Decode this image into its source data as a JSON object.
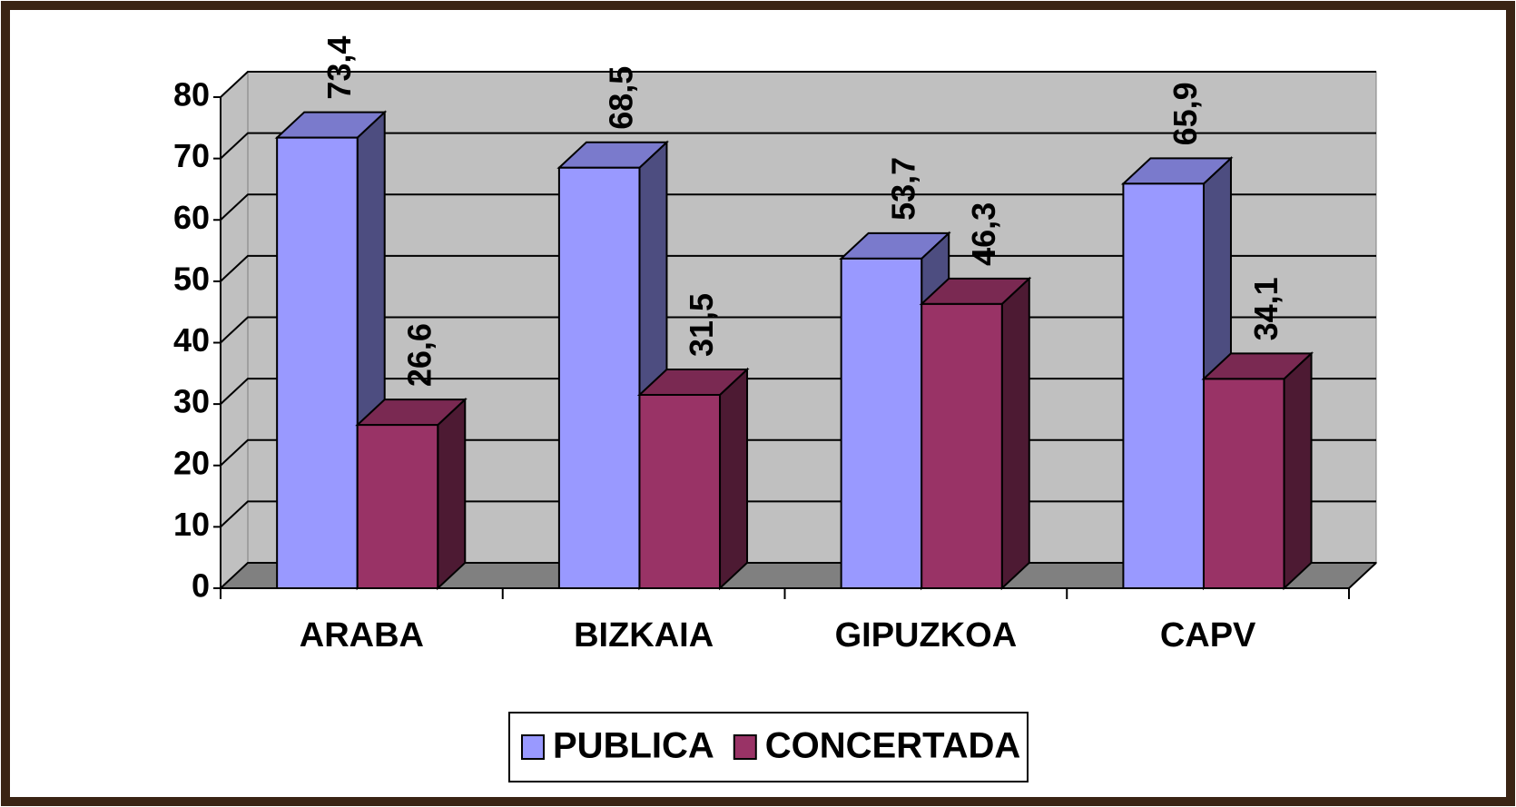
{
  "chart_data": {
    "type": "bar3d",
    "categories": [
      "ARABA",
      "BIZKAIA",
      "GIPUZKOA",
      "CAPV"
    ],
    "series": [
      {
        "name": "PUBLICA",
        "color": "#9999ff",
        "values": [
          73.4,
          68.5,
          53.7,
          65.9
        ],
        "value_labels": [
          "73,4",
          "68,5",
          "53,7",
          "65,9"
        ]
      },
      {
        "name": "CONCERTADA",
        "color": "#993366",
        "values": [
          26.6,
          31.5,
          46.3,
          34.1
        ],
        "value_labels": [
          "26,6",
          "31,5",
          "46,3",
          "34,1"
        ]
      }
    ],
    "ylim": [
      0,
      80
    ],
    "yticks": [
      0,
      10,
      20,
      30,
      40,
      50,
      60,
      70,
      80
    ],
    "grid": true,
    "legend": "bottom"
  }
}
